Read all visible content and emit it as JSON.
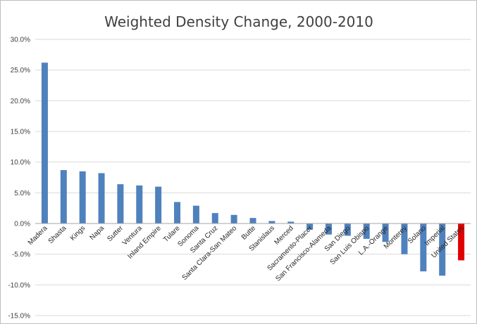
{
  "chart_data": {
    "type": "bar",
    "title": "Weighted Density Change, 2000-2010",
    "xlabel": "",
    "ylabel": "",
    "ylim": [
      -0.15,
      0.3
    ],
    "yticks": [
      0.3,
      0.25,
      0.2,
      0.15,
      0.1,
      0.05,
      0.0,
      -0.05,
      -0.1,
      -0.15
    ],
    "ytick_labels": [
      "30.0%",
      "25.0%",
      "20.0%",
      "15.0%",
      "10.0%",
      "5.0%",
      "0.0%",
      "-5.0%",
      "-10.0%",
      "-15.0%"
    ],
    "grid": true,
    "legend": "none",
    "categories": [
      "Madera",
      "Shasta",
      "Kings",
      "Napa",
      "Sutter",
      "Ventura",
      "Inland Empire",
      "Tulare",
      "Sonoma",
      "Santa Cruz",
      "Santa Clara-San Mateo",
      "Butte",
      "Stanislaus",
      "Merced",
      "Sacramento-Placer",
      "San Francisco-Alameda",
      "San Diego",
      "San Luis Obispo",
      "L.A.-Orange",
      "Monterey",
      "Solano",
      "Imperial",
      "United States"
    ],
    "values": [
      0.262,
      0.087,
      0.085,
      0.082,
      0.064,
      0.062,
      0.06,
      0.035,
      0.029,
      0.017,
      0.014,
      0.009,
      0.004,
      0.003,
      -0.01,
      -0.018,
      -0.02,
      -0.025,
      -0.03,
      -0.05,
      -0.078,
      -0.085,
      -0.06
    ],
    "colors": {
      "bar": "#4f81bd",
      "highlight": "#e00000",
      "grid": "#d9d9d9",
      "axis": "#a6a6a6",
      "highlight_categories": [
        "United States"
      ]
    }
  }
}
